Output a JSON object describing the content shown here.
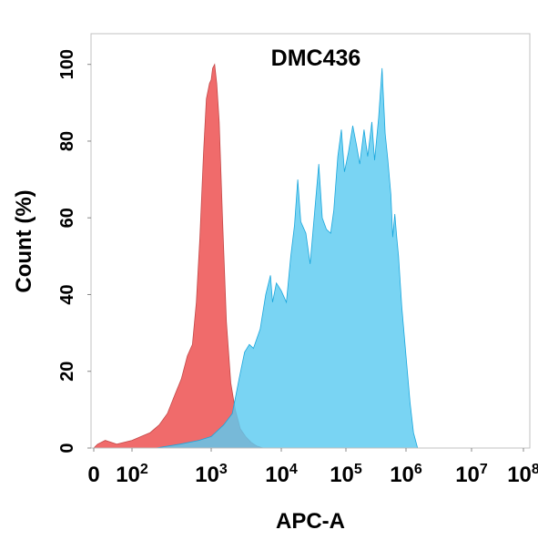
{
  "chart_data": {
    "type": "area",
    "title": "DMC436",
    "xlabel": "APC-A",
    "ylabel": "Count  (%)",
    "x_scale": "biexponential",
    "xlim": [
      0,
      100000000
    ],
    "ylim": [
      0,
      108
    ],
    "y_ticks": [
      0,
      20,
      40,
      60,
      80,
      100
    ],
    "x_ticks": [
      {
        "value": 0,
        "base": "0",
        "exp": ""
      },
      {
        "value": 100,
        "base": "10",
        "exp": "2"
      },
      {
        "value": 1000,
        "base": "10",
        "exp": "3"
      },
      {
        "value": 10000,
        "base": "10",
        "exp": "4"
      },
      {
        "value": 100000,
        "base": "10",
        "exp": "5"
      },
      {
        "value": 1000000,
        "base": "10",
        "exp": "6"
      },
      {
        "value": 10000000,
        "base": "10",
        "exp": "7"
      },
      {
        "value": 100000000,
        "base": "10",
        "exp": "8"
      }
    ],
    "grid": false,
    "legend": "none",
    "series": [
      {
        "color": "#f06b6b",
        "stroke": "#c44848",
        "points": [
          [
            0,
            0
          ],
          [
            10,
            1
          ],
          [
            30,
            2
          ],
          [
            60,
            1
          ],
          [
            100,
            2
          ],
          [
            130,
            3
          ],
          [
            170,
            4
          ],
          [
            220,
            6
          ],
          [
            280,
            9
          ],
          [
            350,
            14
          ],
          [
            420,
            18
          ],
          [
            500,
            24
          ],
          [
            580,
            27
          ],
          [
            650,
            38
          ],
          [
            720,
            55
          ],
          [
            800,
            77
          ],
          [
            870,
            91
          ],
          [
            950,
            95
          ],
          [
            1000,
            96
          ],
          [
            1050,
            99
          ],
          [
            1120,
            100
          ],
          [
            1200,
            95
          ],
          [
            1300,
            85
          ],
          [
            1450,
            60
          ],
          [
            1650,
            33
          ],
          [
            1900,
            17
          ],
          [
            2200,
            10
          ],
          [
            2600,
            5
          ],
          [
            3100,
            3
          ],
          [
            3700,
            1.5
          ],
          [
            4500,
            0.5
          ],
          [
            5500,
            0
          ]
        ]
      },
      {
        "color": "#5ccaf0",
        "stroke": "#1aa6dc",
        "points": [
          [
            200,
            0
          ],
          [
            400,
            1
          ],
          [
            700,
            2
          ],
          [
            1000,
            3
          ],
          [
            1500,
            6
          ],
          [
            2000,
            9
          ],
          [
            2500,
            18
          ],
          [
            3000,
            25
          ],
          [
            3500,
            27
          ],
          [
            4000,
            26
          ],
          [
            5000,
            31
          ],
          [
            6000,
            40
          ],
          [
            7000,
            45
          ],
          [
            7500,
            38
          ],
          [
            8500,
            43
          ],
          [
            10000,
            41
          ],
          [
            12000,
            38
          ],
          [
            14000,
            50
          ],
          [
            16000,
            58
          ],
          [
            18000,
            70
          ],
          [
            20000,
            59
          ],
          [
            24000,
            56
          ],
          [
            28000,
            48
          ],
          [
            33000,
            62
          ],
          [
            38000,
            74
          ],
          [
            43000,
            60
          ],
          [
            50000,
            57
          ],
          [
            58000,
            56
          ],
          [
            65000,
            62
          ],
          [
            75000,
            76
          ],
          [
            85000,
            83
          ],
          [
            95000,
            72
          ],
          [
            110000,
            77
          ],
          [
            130000,
            84
          ],
          [
            150000,
            79
          ],
          [
            170000,
            74
          ],
          [
            200000,
            83
          ],
          [
            230000,
            76
          ],
          [
            270000,
            85
          ],
          [
            300000,
            75
          ],
          [
            350000,
            86
          ],
          [
            400000,
            99
          ],
          [
            450000,
            82
          ],
          [
            500000,
            75
          ],
          [
            560000,
            66
          ],
          [
            600000,
            55
          ],
          [
            650000,
            61
          ],
          [
            700000,
            55
          ],
          [
            750000,
            50
          ],
          [
            850000,
            37
          ],
          [
            1000000,
            24
          ],
          [
            1150000,
            12
          ],
          [
            1300000,
            4
          ],
          [
            1500000,
            0
          ]
        ]
      }
    ]
  }
}
